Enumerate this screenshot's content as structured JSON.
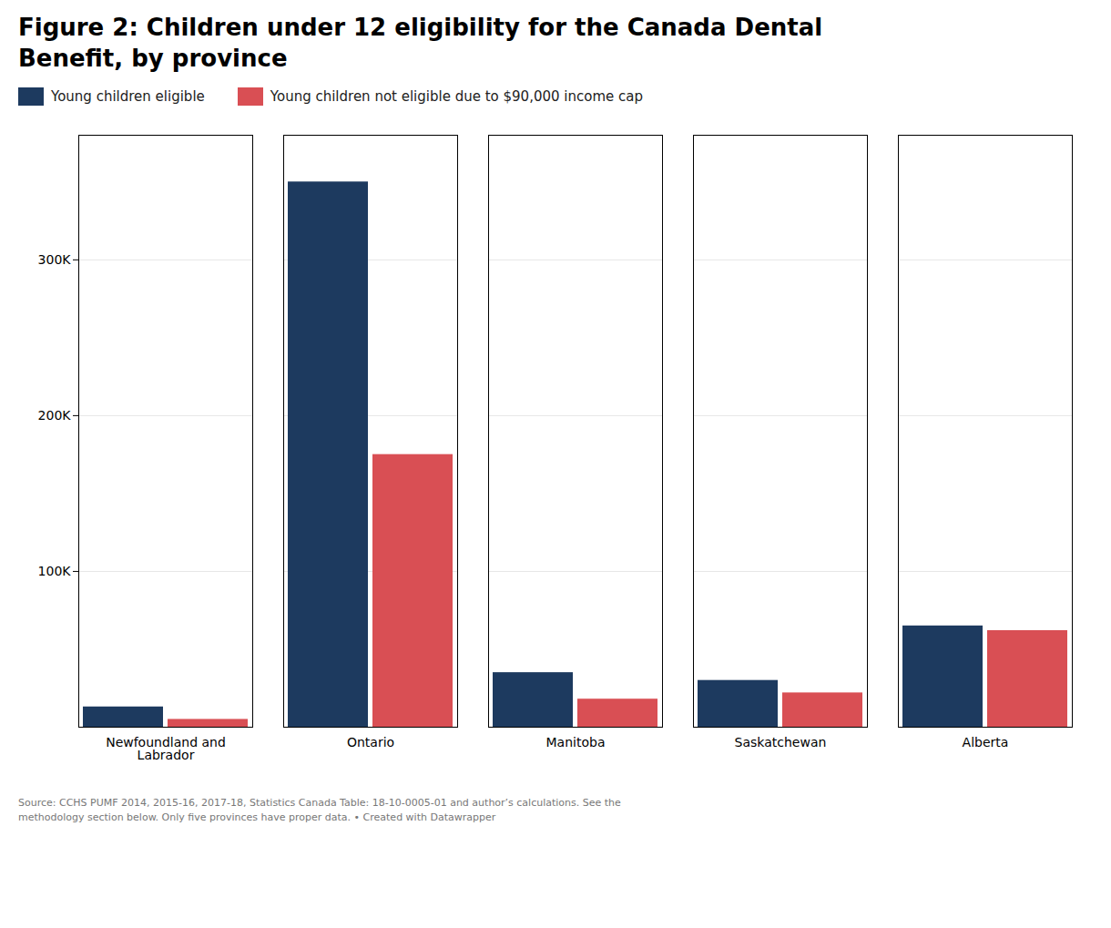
{
  "chart_data": {
    "type": "bar",
    "title": "Figure 2: Children under 12 eligibility for the Canada Dental\nBenefit, by province",
    "categories": [
      "Newfoundland and\nLabrador",
      "Ontario",
      "Manitoba",
      "Saskatchewan",
      "Alberta"
    ],
    "series": [
      {
        "name": "Young children eligible",
        "color": "#1d3a5f",
        "values": [
          13000,
          350000,
          35000,
          30000,
          65000
        ]
      },
      {
        "name": "Young children not eligible due to $90,000 income cap",
        "color": "#d94f54",
        "values": [
          5000,
          175000,
          18000,
          22000,
          62000
        ]
      }
    ],
    "ylim": [
      0,
      380000
    ],
    "yticks": [
      {
        "value": 100000,
        "label": "100K"
      },
      {
        "value": 200000,
        "label": "200K"
      },
      {
        "value": 300000,
        "label": "300K"
      }
    ],
    "grid": true,
    "legend": "top",
    "caption": "Source: CCHS PUMF 2014, 2015-16, 2017-18, Statistics Canada Table: 18-10-0005-01 and author’s calculations. See the\nmethodology section below. Only five provinces have proper data. • Created with Datawrapper"
  }
}
